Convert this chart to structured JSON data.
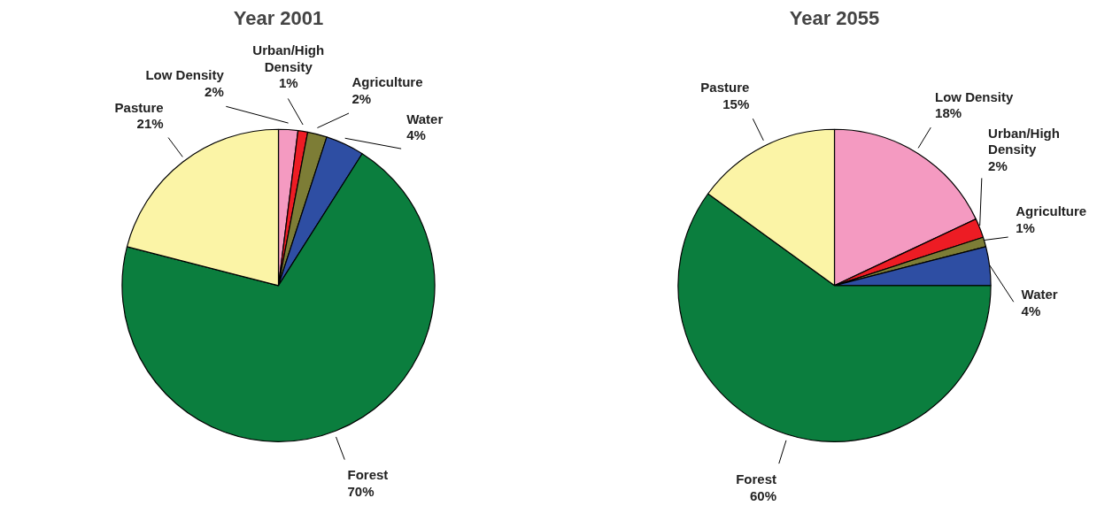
{
  "chart_data": [
    {
      "type": "pie",
      "title": "Year 2001",
      "categories": [
        "Low Density",
        "Urban/High Density",
        "Agriculture",
        "Water",
        "Forest",
        "Pasture"
      ],
      "values": [
        2,
        1,
        2,
        4,
        70,
        21
      ],
      "value_labels": [
        "2%",
        "1%",
        "2%",
        "4%",
        "70%",
        "21%"
      ],
      "colors": [
        "#f49ac1",
        "#ed1c24",
        "#7d7d36",
        "#2e4ea3",
        "#0b7e3e",
        "#fbf4a6"
      ]
    },
    {
      "type": "pie",
      "title": "Year 2055",
      "categories": [
        "Low Density",
        "Urban/High Density",
        "Agriculture",
        "Water",
        "Forest",
        "Pasture"
      ],
      "values": [
        18,
        2,
        1,
        4,
        60,
        15
      ],
      "value_labels": [
        "18%",
        "2%",
        "1%",
        "4%",
        "60%",
        "15%"
      ],
      "colors": [
        "#f49ac1",
        "#ed1c24",
        "#7d7d36",
        "#2e4ea3",
        "#0b7e3e",
        "#fbf4a6"
      ]
    }
  ]
}
